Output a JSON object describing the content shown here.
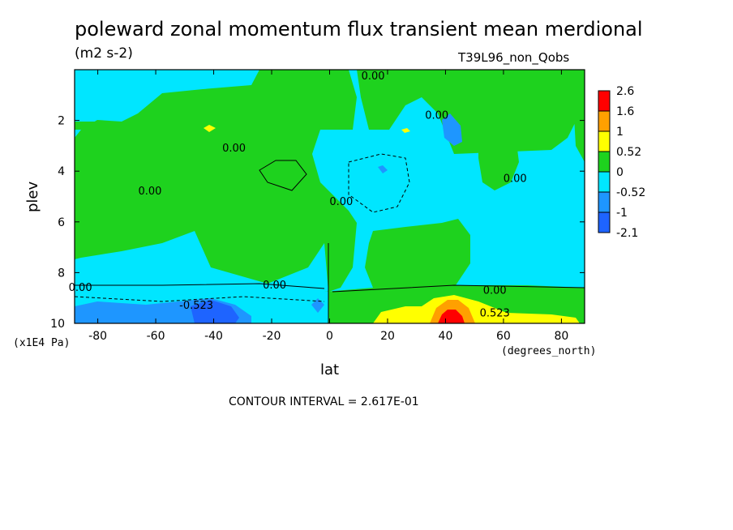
{
  "title": "poleward zonal momentum flux transient mean merdional",
  "units": "(m2 s-2)",
  "run_label": "T39L96_non_Qobs",
  "contour_interval": "CONTOUR INTERVAL = 2.617E-01",
  "colors": {
    "c_neg3": "#1e64ff",
    "c_neg2": "#1e96ff",
    "c_neg1": "#00e6ff",
    "c_pos1": "#1ed21e",
    "c_pos2": "#ffff00",
    "c_pos3": "#ffa000",
    "c_pos4": "#ff0000"
  },
  "chart_data": {
    "type": "heatmap",
    "title": "poleward zonal momentum flux transient mean merdional",
    "xlabel": "lat",
    "ylabel": "plev",
    "x_unit": "(degrees_north)",
    "y_unit": "(x1E4 Pa)",
    "xlim": [
      -88,
      88
    ],
    "ylim": [
      10,
      0
    ],
    "x_ticks": [
      "-80",
      "-60",
      "-40",
      "-20",
      "0",
      "20",
      "40",
      "60",
      "80"
    ],
    "x_tick_values": [
      -80,
      -60,
      -40,
      -20,
      0,
      20,
      40,
      60,
      80
    ],
    "y_ticks": [
      "2",
      "4",
      "6",
      "8",
      "10"
    ],
    "y_tick_values": [
      2,
      4,
      6,
      8,
      10
    ],
    "colorbar_labels": [
      "2.6",
      "1.6",
      "1",
      "0.52",
      "0",
      "-0.52",
      "-1",
      "-2.1"
    ],
    "contour_labels": [
      {
        "text": "0.00",
        "lat": 15,
        "plev": 0.25
      },
      {
        "text": "0.00",
        "lat": 37,
        "plev": 1.8
      },
      {
        "text": "0.00",
        "lat": -33,
        "plev": 3.1
      },
      {
        "text": "0.00",
        "lat": -62,
        "plev": 4.8
      },
      {
        "text": "0.00",
        "lat": 4,
        "plev": 5.2
      },
      {
        "text": "0.00",
        "lat": 64,
        "plev": 4.3
      },
      {
        "text": "0.00",
        "lat": -86,
        "plev": 8.6
      },
      {
        "text": "0.00",
        "lat": -19,
        "plev": 8.5
      },
      {
        "text": "0.00",
        "lat": 57,
        "plev": 8.7
      },
      {
        "text": "-0.523",
        "lat": -46,
        "plev": 9.3
      },
      {
        "text": "0.523",
        "lat": 57,
        "plev": 9.6
      }
    ]
  }
}
